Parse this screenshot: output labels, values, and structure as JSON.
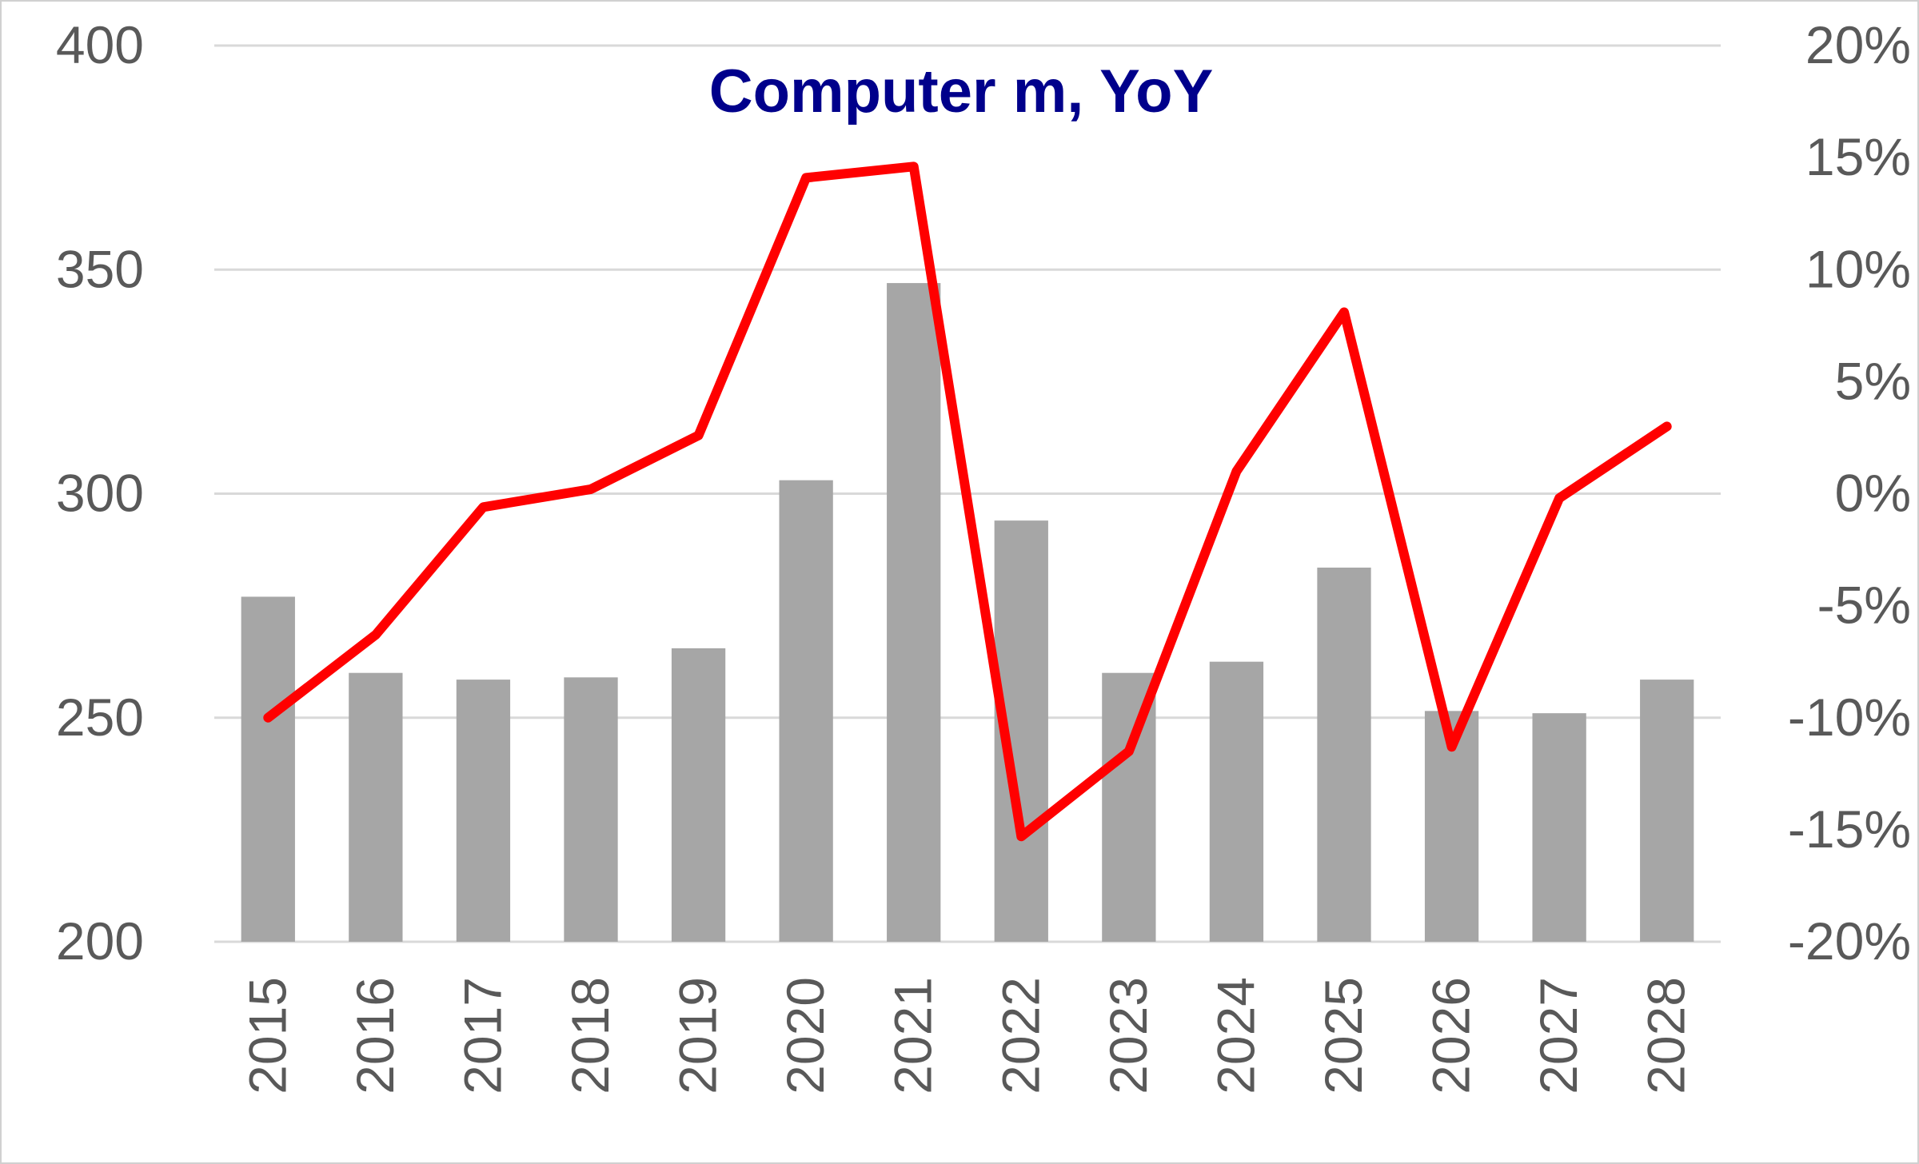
{
  "chart_data": {
    "type": "bar",
    "title": "Computer m, YoY",
    "categories": [
      "2015",
      "2016",
      "2017",
      "2018",
      "2019",
      "2020",
      "2021",
      "2022",
      "2023",
      "2024",
      "2025",
      "2026",
      "2027",
      "2028"
    ],
    "series": [
      {
        "type": "bar",
        "axis": "left",
        "values": [
          277,
          260,
          258.5,
          259,
          265.5,
          303,
          347,
          294,
          260,
          262.5,
          283.5,
          251.5,
          251,
          258.5
        ]
      },
      {
        "type": "line",
        "axis": "right",
        "values": [
          -10,
          -6.3,
          -0.6,
          0.2,
          2.6,
          14.1,
          14.6,
          -15.3,
          -11.5,
          1.0,
          8.1,
          -11.3,
          -0.2,
          3.0
        ]
      }
    ],
    "y_left": {
      "ylim": [
        200,
        400
      ],
      "ticks": [
        "200",
        "250",
        "300",
        "350",
        "400"
      ],
      "tick_values": [
        200,
        250,
        300,
        350,
        400
      ]
    },
    "y_right": {
      "ylim": [
        -20,
        20
      ],
      "ticks": [
        "-20%",
        "-15%",
        "-10%",
        "-5%",
        "0%",
        "5%",
        "10%",
        "15%",
        "20%"
      ],
      "tick_values": [
        -20,
        -15,
        -10,
        -5,
        0,
        5,
        10,
        15,
        20
      ]
    },
    "grid": true,
    "legend": "none",
    "colors": {
      "bars": "#a6a6a6",
      "line": "#ff0000",
      "title": "#00008b",
      "gridline": "#d9d9d9",
      "ticks": "#595959"
    }
  }
}
